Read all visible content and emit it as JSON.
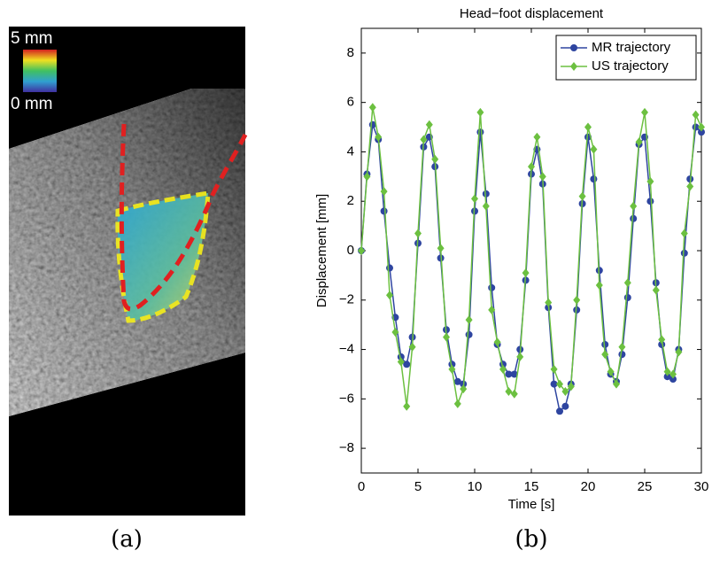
{
  "panel_a": {
    "scale_max_label": "5 mm",
    "scale_min_label": "0 mm",
    "caption": "(a)"
  },
  "panel_b_caption": "(b)",
  "chart_data": {
    "type": "line",
    "title": "Head−foot displacement",
    "x_label": "Time [s]",
    "y_label": "Displacement [mm]",
    "x": [
      0,
      0.5,
      1,
      1.5,
      2,
      2.5,
      3,
      3.5,
      4,
      4.5,
      5,
      5.5,
      6,
      6.5,
      7,
      7.5,
      8,
      8.5,
      9,
      9.5,
      10,
      10.5,
      11,
      11.5,
      12,
      12.5,
      13,
      13.5,
      14,
      14.5,
      15,
      15.5,
      16,
      16.5,
      17,
      17.5,
      18,
      18.5,
      19,
      19.5,
      20,
      20.5,
      21,
      21.5,
      22,
      22.5,
      23,
      23.5,
      24,
      24.5,
      25,
      25.5,
      26,
      26.5,
      27,
      27.5,
      28,
      28.5,
      29,
      29.5,
      30
    ],
    "series": [
      {
        "name": "MR trajectory",
        "color": "#2e45a0",
        "marker": "circle",
        "values": [
          0,
          3.1,
          5.1,
          4.5,
          1.6,
          -0.7,
          -2.7,
          -4.3,
          -4.6,
          -3.5,
          0.3,
          4.2,
          4.6,
          3.4,
          -0.3,
          -3.2,
          -4.6,
          -5.3,
          -5.4,
          -3.4,
          1.6,
          4.8,
          2.3,
          -1.5,
          -3.8,
          -4.6,
          -5.0,
          -5.0,
          -4.0,
          -1.2,
          3.1,
          4.1,
          2.7,
          -2.3,
          -5.4,
          -6.5,
          -6.3,
          -5.4,
          -2.4,
          1.9,
          4.6,
          2.9,
          -0.8,
          -3.8,
          -5.0,
          -5.3,
          -4.2,
          -1.9,
          1.3,
          4.3,
          4.6,
          2.0,
          -1.3,
          -3.8,
          -5.1,
          -5.2,
          -4.0,
          -0.1,
          2.9,
          5.0,
          4.8
        ]
      },
      {
        "name": "US trajectory",
        "color": "#6cc040",
        "marker": "diamond",
        "values": [
          0,
          3.0,
          5.8,
          4.6,
          2.4,
          -1.8,
          -3.3,
          -4.5,
          -6.3,
          -3.9,
          0.7,
          4.5,
          5.1,
          3.7,
          0.1,
          -3.5,
          -4.8,
          -6.2,
          -5.6,
          -2.8,
          2.1,
          5.6,
          1.8,
          -2.4,
          -3.7,
          -4.8,
          -5.7,
          -5.8,
          -4.3,
          -0.9,
          3.4,
          4.6,
          3.0,
          -2.1,
          -4.8,
          -5.4,
          -5.7,
          -5.5,
          -2.0,
          2.2,
          5.0,
          4.1,
          -1.4,
          -4.2,
          -4.9,
          -5.4,
          -3.9,
          -1.3,
          1.8,
          4.4,
          5.6,
          2.8,
          -1.6,
          -3.6,
          -4.9,
          -5.0,
          -4.1,
          0.7,
          2.6,
          5.5,
          5.0
        ]
      }
    ],
    "xlim": [
      0,
      30
    ],
    "xticks": [
      0,
      5,
      10,
      15,
      20,
      25,
      30
    ],
    "ylim": [
      -9,
      9
    ],
    "yticks": [
      {
        "value": -8,
        "label": "−8"
      },
      {
        "value": -6,
        "label": "−6"
      },
      {
        "value": -4,
        "label": "−4"
      },
      {
        "value": -2,
        "label": "−2"
      },
      0,
      2,
      4,
      6,
      8
    ],
    "legend": "upper right"
  }
}
